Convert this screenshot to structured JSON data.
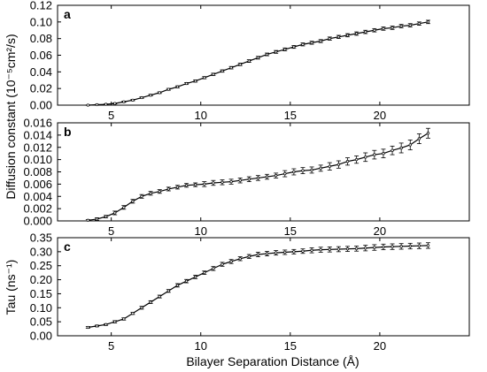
{
  "chart_data": [
    {
      "type": "line",
      "panel": "a",
      "ylabel": "Diffusion constant (10⁻⁵cm²/s)",
      "xlim": [
        2,
        25
      ],
      "ylim": [
        0,
        0.12
      ],
      "yticks": [
        "0.00",
        "0.02",
        "0.04",
        "0.06",
        "0.08",
        "0.10",
        "0.12"
      ],
      "xticks": [
        "5",
        "10",
        "15",
        "20"
      ],
      "series": [
        {
          "x": [
            3.7,
            4.2,
            4.7,
            5.2,
            5.7,
            6.2,
            6.7,
            7.2,
            7.7,
            8.2,
            8.7,
            9.2,
            9.7,
            10.2,
            10.7,
            11.2,
            11.7,
            12.2,
            12.7,
            13.2,
            13.7,
            14.2,
            14.7,
            15.2,
            15.7,
            16.2,
            16.7,
            17.2,
            17.7,
            18.2,
            18.7,
            19.2,
            19.7,
            20.2,
            20.7,
            21.2,
            21.7,
            22.2,
            22.7
          ],
          "y": [
            0.0,
            0.0005,
            0.001,
            0.002,
            0.004,
            0.006,
            0.009,
            0.012,
            0.015,
            0.019,
            0.022,
            0.026,
            0.029,
            0.033,
            0.037,
            0.041,
            0.045,
            0.049,
            0.053,
            0.057,
            0.061,
            0.064,
            0.067,
            0.07,
            0.073,
            0.075,
            0.077,
            0.08,
            0.082,
            0.084,
            0.086,
            0.088,
            0.09,
            0.092,
            0.093,
            0.095,
            0.096,
            0.098,
            0.1
          ],
          "err": [
            0.0003,
            0.0004,
            0.0005,
            0.0006,
            0.0007,
            0.0008,
            0.0009,
            0.001,
            0.001,
            0.0011,
            0.0012,
            0.0012,
            0.0013,
            0.0013,
            0.0014,
            0.0014,
            0.0015,
            0.0015,
            0.0016,
            0.0016,
            0.0016,
            0.0017,
            0.0017,
            0.0017,
            0.0018,
            0.0018,
            0.0018,
            0.0019,
            0.0019,
            0.0019,
            0.002,
            0.002,
            0.002,
            0.002,
            0.002,
            0.002,
            0.002,
            0.002,
            0.002
          ]
        }
      ]
    },
    {
      "type": "line",
      "panel": "b",
      "ylabel": "",
      "xlim": [
        2,
        25
      ],
      "ylim": [
        0,
        0.016
      ],
      "yticks": [
        "0.000",
        "0.002",
        "0.004",
        "0.006",
        "0.008",
        "0.010",
        "0.012",
        "0.014",
        "0.016"
      ],
      "xticks": [
        "5",
        "10",
        "15",
        "20"
      ],
      "series": [
        {
          "x": [
            3.7,
            4.2,
            4.7,
            5.2,
            5.7,
            6.2,
            6.7,
            7.2,
            7.7,
            8.2,
            8.7,
            9.2,
            9.7,
            10.2,
            10.7,
            11.2,
            11.7,
            12.2,
            12.7,
            13.2,
            13.7,
            14.2,
            14.7,
            15.2,
            15.7,
            16.2,
            16.7,
            17.2,
            17.7,
            18.2,
            18.7,
            19.2,
            19.7,
            20.2,
            20.7,
            21.2,
            21.7,
            22.2,
            22.7
          ],
          "y": [
            0.0001,
            0.0003,
            0.0007,
            0.0013,
            0.0022,
            0.0032,
            0.004,
            0.0045,
            0.0048,
            0.0052,
            0.0055,
            0.0058,
            0.0059,
            0.006,
            0.0062,
            0.0063,
            0.0064,
            0.0066,
            0.0068,
            0.007,
            0.0072,
            0.0074,
            0.0077,
            0.008,
            0.0082,
            0.0083,
            0.0086,
            0.0089,
            0.0092,
            0.0097,
            0.01,
            0.0104,
            0.0108,
            0.011,
            0.0115,
            0.0119,
            0.0124,
            0.0134,
            0.0143
          ],
          "err": [
            0.0001,
            0.0002,
            0.0002,
            0.0003,
            0.0003,
            0.0003,
            0.0003,
            0.0003,
            0.0003,
            0.0003,
            0.0003,
            0.0003,
            0.0003,
            0.0004,
            0.0004,
            0.0004,
            0.0004,
            0.0004,
            0.0004,
            0.0004,
            0.0004,
            0.0004,
            0.0005,
            0.0005,
            0.0005,
            0.0005,
            0.0005,
            0.0006,
            0.0006,
            0.0006,
            0.0006,
            0.0007,
            0.0007,
            0.0007,
            0.0007,
            0.0008,
            0.0008,
            0.0008,
            0.0008
          ]
        }
      ]
    },
    {
      "type": "line",
      "panel": "c",
      "ylabel": "Tau (ns⁻¹)",
      "xlabel": "Bilayer Separation Distance (Å)",
      "xlim": [
        2,
        25
      ],
      "ylim": [
        0,
        0.35
      ],
      "yticks": [
        "0.00",
        "0.05",
        "0.10",
        "0.15",
        "0.20",
        "0.25",
        "0.30",
        "0.35"
      ],
      "xticks": [
        "5",
        "10",
        "15",
        "20"
      ],
      "series": [
        {
          "x": [
            3.7,
            4.2,
            4.7,
            5.2,
            5.7,
            6.2,
            6.7,
            7.2,
            7.7,
            8.2,
            8.7,
            9.2,
            9.7,
            10.2,
            10.7,
            11.2,
            11.7,
            12.2,
            12.7,
            13.2,
            13.7,
            14.2,
            14.7,
            15.2,
            15.7,
            16.2,
            16.7,
            17.2,
            17.7,
            18.2,
            18.7,
            19.2,
            19.7,
            20.2,
            20.7,
            21.2,
            21.7,
            22.2,
            22.7
          ],
          "y": [
            0.03,
            0.035,
            0.04,
            0.05,
            0.06,
            0.08,
            0.1,
            0.12,
            0.14,
            0.16,
            0.18,
            0.195,
            0.21,
            0.225,
            0.24,
            0.255,
            0.265,
            0.275,
            0.283,
            0.29,
            0.293,
            0.296,
            0.298,
            0.3,
            0.302,
            0.305,
            0.307,
            0.308,
            0.309,
            0.31,
            0.311,
            0.313,
            0.315,
            0.317,
            0.318,
            0.319,
            0.32,
            0.321,
            0.322
          ],
          "err": [
            0.003,
            0.003,
            0.003,
            0.004,
            0.004,
            0.004,
            0.005,
            0.005,
            0.005,
            0.005,
            0.006,
            0.006,
            0.006,
            0.006,
            0.007,
            0.007,
            0.007,
            0.007,
            0.007,
            0.008,
            0.008,
            0.008,
            0.008,
            0.008,
            0.008,
            0.009,
            0.009,
            0.009,
            0.009,
            0.009,
            0.009,
            0.01,
            0.01,
            0.01,
            0.01,
            0.01,
            0.01,
            0.01,
            0.01
          ]
        }
      ]
    }
  ]
}
